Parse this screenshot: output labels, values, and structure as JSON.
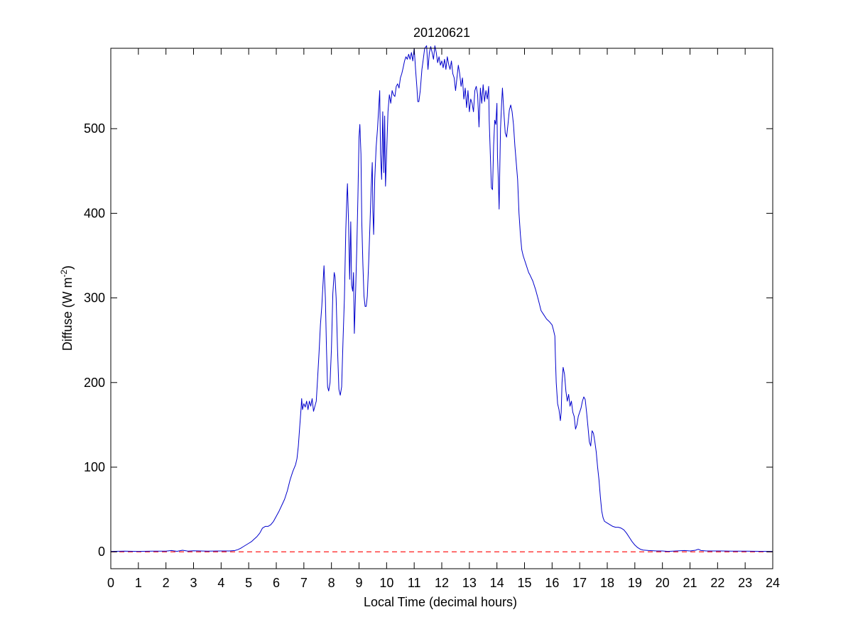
{
  "colors": {
    "series": "#0000cc",
    "baseline": "#ff0000",
    "axes": "#000000",
    "background": "#ffffff"
  },
  "chart_data": {
    "type": "line",
    "title": "20120621",
    "xlabel": "Local Time (decimal hours)",
    "ylabel_main": "Diffuse (W m",
    "ylabel_sup": "-2",
    "ylabel_close": ")",
    "xlim": [
      0,
      24
    ],
    "ylim": [
      -20,
      595
    ],
    "xticks": [
      0,
      1,
      2,
      3,
      4,
      5,
      6,
      7,
      8,
      9,
      10,
      11,
      12,
      13,
      14,
      15,
      16,
      17,
      18,
      19,
      20,
      21,
      22,
      23,
      24
    ],
    "yticks": [
      0,
      100,
      200,
      300,
      400,
      500
    ],
    "grid": false,
    "baseline": {
      "y": 0,
      "style": "dashed",
      "color": "#ff0000"
    },
    "series": [
      {
        "color": "#0000cc",
        "points": [
          [
            0,
            0.5
          ],
          [
            0.5,
            0.8
          ],
          [
            1,
            0.5
          ],
          [
            1.5,
            0.8
          ],
          [
            2,
            0.8
          ],
          [
            2.2,
            1.5
          ],
          [
            2.4,
            0.6
          ],
          [
            2.6,
            1.8
          ],
          [
            2.8,
            0.8
          ],
          [
            3,
            1.2
          ],
          [
            3.5,
            0.8
          ],
          [
            4,
            1
          ],
          [
            4.3,
            1
          ],
          [
            4.5,
            1.5
          ],
          [
            4.6,
            2.5
          ],
          [
            4.7,
            4
          ],
          [
            4.8,
            6
          ],
          [
            4.9,
            8
          ],
          [
            5,
            10
          ],
          [
            5.1,
            12
          ],
          [
            5.2,
            15
          ],
          [
            5.3,
            18
          ],
          [
            5.4,
            22
          ],
          [
            5.5,
            28
          ],
          [
            5.6,
            30
          ],
          [
            5.7,
            30
          ],
          [
            5.8,
            32
          ],
          [
            5.9,
            36
          ],
          [
            6,
            42
          ],
          [
            6.1,
            48
          ],
          [
            6.2,
            55
          ],
          [
            6.3,
            62
          ],
          [
            6.4,
            72
          ],
          [
            6.5,
            85
          ],
          [
            6.6,
            95
          ],
          [
            6.7,
            103
          ],
          [
            6.75,
            110
          ],
          [
            6.8,
            125
          ],
          [
            6.85,
            148
          ],
          [
            6.9,
            170
          ],
          [
            6.92,
            181
          ],
          [
            6.95,
            168
          ],
          [
            7,
            175
          ],
          [
            7.05,
            171
          ],
          [
            7.1,
            178
          ],
          [
            7.15,
            168
          ],
          [
            7.2,
            178
          ],
          [
            7.25,
            172
          ],
          [
            7.3,
            181
          ],
          [
            7.35,
            166
          ],
          [
            7.4,
            172
          ],
          [
            7.45,
            178
          ],
          [
            7.5,
            206
          ],
          [
            7.55,
            235
          ],
          [
            7.6,
            268
          ],
          [
            7.65,
            290
          ],
          [
            7.7,
            320
          ],
          [
            7.73,
            338
          ],
          [
            7.78,
            300
          ],
          [
            7.82,
            240
          ],
          [
            7.86,
            195
          ],
          [
            7.9,
            190
          ],
          [
            7.95,
            200
          ],
          [
            8,
            240
          ],
          [
            8.05,
            305
          ],
          [
            8.1,
            330
          ],
          [
            8.13,
            325
          ],
          [
            8.17,
            300
          ],
          [
            8.22,
            240
          ],
          [
            8.27,
            192
          ],
          [
            8.32,
            185
          ],
          [
            8.37,
            195
          ],
          [
            8.42,
            250
          ],
          [
            8.47,
            300
          ],
          [
            8.52,
            380
          ],
          [
            8.56,
            420
          ],
          [
            8.58,
            435
          ],
          [
            8.62,
            390
          ],
          [
            8.66,
            322
          ],
          [
            8.7,
            390
          ],
          [
            8.73,
            315
          ],
          [
            8.77,
            308
          ],
          [
            8.8,
            330
          ],
          [
            8.83,
            258
          ],
          [
            8.87,
            300
          ],
          [
            8.92,
            360
          ],
          [
            8.96,
            420
          ],
          [
            9,
            490
          ],
          [
            9.03,
            505
          ],
          [
            9.07,
            470
          ],
          [
            9.1,
            390
          ],
          [
            9.14,
            340
          ],
          [
            9.18,
            302
          ],
          [
            9.22,
            290
          ],
          [
            9.26,
            290
          ],
          [
            9.3,
            302
          ],
          [
            9.35,
            342
          ],
          [
            9.4,
            390
          ],
          [
            9.44,
            430
          ],
          [
            9.48,
            460
          ],
          [
            9.5,
            405
          ],
          [
            9.53,
            375
          ],
          [
            9.57,
            440
          ],
          [
            9.62,
            478
          ],
          [
            9.67,
            500
          ],
          [
            9.72,
            528
          ],
          [
            9.75,
            545
          ],
          [
            9.78,
            470
          ],
          [
            9.82,
            440
          ],
          [
            9.86,
            520
          ],
          [
            9.9,
            448
          ],
          [
            9.93,
            515
          ],
          [
            9.96,
            432
          ],
          [
            10,
            470
          ],
          [
            10.05,
            520
          ],
          [
            10.1,
            540
          ],
          [
            10.15,
            530
          ],
          [
            10.2,
            545
          ],
          [
            10.25,
            540
          ],
          [
            10.3,
            538
          ],
          [
            10.35,
            550
          ],
          [
            10.4,
            553
          ],
          [
            10.45,
            548
          ],
          [
            10.5,
            560
          ],
          [
            10.55,
            565
          ],
          [
            10.6,
            572
          ],
          [
            10.65,
            580
          ],
          [
            10.7,
            585
          ],
          [
            10.75,
            582
          ],
          [
            10.8,
            588
          ],
          [
            10.85,
            582
          ],
          [
            10.9,
            590
          ],
          [
            10.95,
            580
          ],
          [
            11,
            595
          ],
          [
            11.05,
            570
          ],
          [
            11.1,
            548
          ],
          [
            11.13,
            532
          ],
          [
            11.17,
            532
          ],
          [
            11.22,
            545
          ],
          [
            11.28,
            570
          ],
          [
            11.33,
            582
          ],
          [
            11.38,
            595
          ],
          [
            11.45,
            598
          ],
          [
            11.5,
            570
          ],
          [
            11.55,
            590
          ],
          [
            11.6,
            597
          ],
          [
            11.65,
            590
          ],
          [
            11.7,
            582
          ],
          [
            11.75,
            598
          ],
          [
            11.8,
            590
          ],
          [
            11.85,
            578
          ],
          [
            11.9,
            585
          ],
          [
            11.95,
            575
          ],
          [
            12,
            580
          ],
          [
            12.05,
            572
          ],
          [
            12.1,
            582
          ],
          [
            12.15,
            570
          ],
          [
            12.2,
            585
          ],
          [
            12.25,
            576
          ],
          [
            12.3,
            570
          ],
          [
            12.35,
            580
          ],
          [
            12.4,
            565
          ],
          [
            12.45,
            560
          ],
          [
            12.5,
            545
          ],
          [
            12.55,
            560
          ],
          [
            12.6,
            575
          ],
          [
            12.65,
            565
          ],
          [
            12.7,
            550
          ],
          [
            12.75,
            560
          ],
          [
            12.8,
            535
          ],
          [
            12.85,
            548
          ],
          [
            12.9,
            525
          ],
          [
            12.95,
            545
          ],
          [
            13,
            520
          ],
          [
            13.05,
            535
          ],
          [
            13.1,
            530
          ],
          [
            13.15,
            520
          ],
          [
            13.2,
            545
          ],
          [
            13.25,
            550
          ],
          [
            13.3,
            540
          ],
          [
            13.35,
            502
          ],
          [
            13.4,
            548
          ],
          [
            13.45,
            530
          ],
          [
            13.5,
            552
          ],
          [
            13.55,
            532
          ],
          [
            13.6,
            545
          ],
          [
            13.65,
            535
          ],
          [
            13.7,
            550
          ],
          [
            13.72,
            510
          ],
          [
            13.76,
            470
          ],
          [
            13.8,
            430
          ],
          [
            13.84,
            428
          ],
          [
            13.88,
            480
          ],
          [
            13.92,
            510
          ],
          [
            13.96,
            505
          ],
          [
            14,
            530
          ],
          [
            14.02,
            468
          ],
          [
            14.05,
            440
          ],
          [
            14.08,
            405
          ],
          [
            14.1,
            445
          ],
          [
            14.13,
            500
          ],
          [
            14.17,
            530
          ],
          [
            14.2,
            548
          ],
          [
            14.25,
            520
          ],
          [
            14.3,
            495
          ],
          [
            14.35,
            490
          ],
          [
            14.4,
            505
          ],
          [
            14.45,
            522
          ],
          [
            14.5,
            528
          ],
          [
            14.55,
            520
          ],
          [
            14.6,
            505
          ],
          [
            14.65,
            480
          ],
          [
            14.7,
            460
          ],
          [
            14.75,
            440
          ],
          [
            14.8,
            400
          ],
          [
            14.85,
            375
          ],
          [
            14.9,
            357
          ],
          [
            14.95,
            350
          ],
          [
            15,
            345
          ],
          [
            15.05,
            340
          ],
          [
            15.1,
            335
          ],
          [
            15.15,
            330
          ],
          [
            15.2,
            327
          ],
          [
            15.3,
            320
          ],
          [
            15.4,
            310
          ],
          [
            15.5,
            298
          ],
          [
            15.6,
            285
          ],
          [
            15.7,
            280
          ],
          [
            15.8,
            275
          ],
          [
            15.9,
            272
          ],
          [
            16,
            268
          ],
          [
            16.05,
            262
          ],
          [
            16.1,
            255
          ],
          [
            16.12,
            230
          ],
          [
            16.15,
            200
          ],
          [
            16.2,
            175
          ],
          [
            16.25,
            168
          ],
          [
            16.3,
            155
          ],
          [
            16.33,
            165
          ],
          [
            16.36,
            200
          ],
          [
            16.4,
            218
          ],
          [
            16.45,
            210
          ],
          [
            16.5,
            190
          ],
          [
            16.55,
            178
          ],
          [
            16.6,
            186
          ],
          [
            16.65,
            172
          ],
          [
            16.7,
            178
          ],
          [
            16.75,
            165
          ],
          [
            16.8,
            160
          ],
          [
            16.85,
            145
          ],
          [
            16.9,
            150
          ],
          [
            16.95,
            160
          ],
          [
            17,
            165
          ],
          [
            17.05,
            170
          ],
          [
            17.1,
            178
          ],
          [
            17.15,
            183
          ],
          [
            17.2,
            180
          ],
          [
            17.25,
            165
          ],
          [
            17.3,
            148
          ],
          [
            17.35,
            130
          ],
          [
            17.4,
            125
          ],
          [
            17.45,
            143
          ],
          [
            17.5,
            140
          ],
          [
            17.55,
            130
          ],
          [
            17.6,
            118
          ],
          [
            17.65,
            100
          ],
          [
            17.7,
            85
          ],
          [
            17.75,
            65
          ],
          [
            17.8,
            48
          ],
          [
            17.85,
            40
          ],
          [
            17.9,
            36
          ],
          [
            18,
            34
          ],
          [
            18.1,
            32
          ],
          [
            18.2,
            30
          ],
          [
            18.3,
            29
          ],
          [
            18.4,
            29
          ],
          [
            18.5,
            28
          ],
          [
            18.6,
            26
          ],
          [
            18.7,
            22
          ],
          [
            18.8,
            17
          ],
          [
            18.9,
            12
          ],
          [
            19,
            8
          ],
          [
            19.1,
            5
          ],
          [
            19.2,
            3
          ],
          [
            19.3,
            2
          ],
          [
            19.5,
            1.5
          ],
          [
            19.8,
            1
          ],
          [
            20,
            1
          ],
          [
            20.2,
            0.5
          ],
          [
            20.5,
            1
          ],
          [
            20.8,
            1.5
          ],
          [
            21,
            1
          ],
          [
            21.2,
            1.8
          ],
          [
            21.3,
            3
          ],
          [
            21.4,
            1.5
          ],
          [
            21.6,
            1
          ],
          [
            22,
            1
          ],
          [
            22.5,
            0.8
          ],
          [
            23,
            0.8
          ],
          [
            23.5,
            0.6
          ],
          [
            24,
            0.5
          ]
        ]
      }
    ]
  }
}
